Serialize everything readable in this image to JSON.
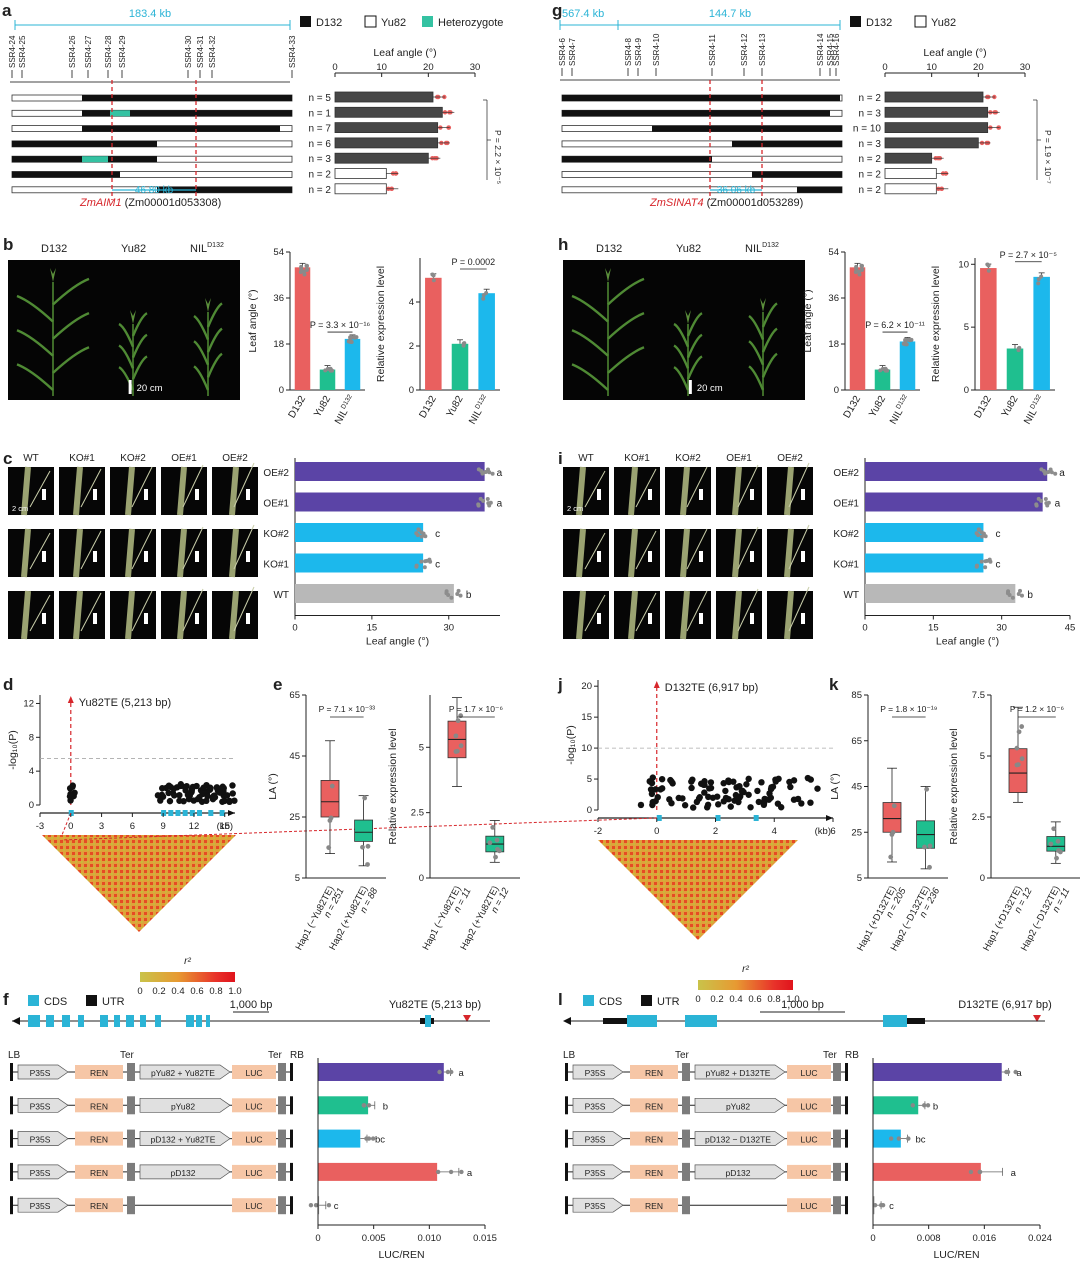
{
  "colors": {
    "d132": "#e9605f",
    "yu82": "#1fbf8f",
    "nil": "#1cb8ec",
    "purple": "#5b44a6",
    "gray": "#b8b8b8",
    "dark": "#474747",
    "het": "#34c2a2",
    "cyan": "#2bb4d6",
    "redline": "#d7262b",
    "teLabel": "#c3252b"
  },
  "panels": {
    "a": {
      "letter": "a",
      "kb_total": "183.4 kb",
      "legend": [
        "D132",
        "Yu82",
        "Heterozygote"
      ],
      "markers": [
        "SSR4-24",
        "SSR4-25",
        "SSR4-26",
        "SSR4-27",
        "SSR4-28",
        "SSR4-29",
        "SSR4-30",
        "SSR4-31",
        "SSR4-32",
        "SSR4-33"
      ],
      "interval_kb": "46.80 kb",
      "gene_name": "ZmAIM1",
      "gene_id": "(Zm00001d053308)",
      "axis_title": "Leaf angle (°)",
      "p_label": "P = 2.2 × 10⁻⁵"
    },
    "g": {
      "letter": "g",
      "kb_left": "567.4 kb",
      "kb_right": "144.7 kb",
      "legend": [
        "D132",
        "Yu82"
      ],
      "markers": [
        "SSR4-6",
        "SSR4-7",
        "SSR4-8",
        "SSR4-9",
        "SSR4-10",
        "SSR4-11",
        "SSR4-12",
        "SSR4-13",
        "SSR4-14",
        "SSR4-15",
        "SSR4-16"
      ],
      "interval_kb": "36.06 kb",
      "gene_name": "ZmSINAT4",
      "gene_id": "(Zm00001d053289)",
      "axis_title": "Leaf angle (°)",
      "p_label": "P = 1.9 × 10⁻⁷"
    },
    "b": {
      "letter": "b",
      "plants": [
        "D132",
        "Yu82",
        "NIL"
      ],
      "nil_sup": "D132",
      "scale": "20 cm",
      "p1": "P = 3.3 × 10⁻¹⁶",
      "p2": "P = 0.0002",
      "ylabel1": "Leaf angle (°)",
      "ylabel2": "Relative expression level"
    },
    "h": {
      "letter": "h",
      "plants": [
        "D132",
        "Yu82",
        "NIL"
      ],
      "nil_sup": "D132",
      "scale": "20 cm",
      "p1": "P = 6.2 × 10⁻¹¹",
      "p2": "P = 2.7 × 10⁻⁵",
      "ylabel1": "Leaf angle (°)",
      "ylabel2": "Relative expression level"
    },
    "c": {
      "letter": "c",
      "cols": [
        "WT",
        "KO#1",
        "KO#2",
        "OE#1",
        "OE#2"
      ],
      "scale": "2 cm",
      "xlabel": "Leaf angle (°)"
    },
    "i": {
      "letter": "i",
      "cols": [
        "WT",
        "KO#1",
        "KO#2",
        "OE#1",
        "OE#2"
      ],
      "scale": "2 cm",
      "xlabel": "Leaf angle (°)"
    },
    "d": {
      "letter": "d",
      "te": "Yu82TE (5,213 bp)",
      "ylabel": "-log₁₀(P)",
      "xunit": "(kb)",
      "r2": "r²"
    },
    "j": {
      "letter": "j",
      "te": "D132TE (6,917 bp)",
      "ylabel": "-log₁₀(P)",
      "xunit": "(kb)",
      "r2": "r²"
    },
    "e": {
      "letter": "e",
      "p1": "P = 7.1 × 10⁻³³",
      "p2": "P = 1.7 × 10⁻⁶",
      "ylabel1": "LA (°)",
      "ylabel2": "Relative expression level",
      "g1": [
        "Hap1 (−Yu82TE)",
        "n = 251"
      ],
      "g2": [
        "Hap2 (+Yu82TE)",
        "n = 88"
      ],
      "g3": [
        "Hap1 (−Yu82TE)",
        "n = 11"
      ],
      "g4": [
        "Hap2 (+Yu82TE)",
        "n = 12"
      ]
    },
    "k": {
      "letter": "k",
      "p1": "P = 1.8 × 10⁻¹⁹",
      "p2": "P = 1.2 × 10⁻⁶",
      "ylabel1": "LA (°)",
      "ylabel2": "Relative expression level",
      "g1": [
        "Hap1 (+D132TE)",
        "n = 205"
      ],
      "g2": [
        "Hap2 (−D132TE)",
        "n = 236"
      ],
      "g3": [
        "Hap1 (+D132TE)",
        "n = 12"
      ],
      "g4": [
        "Hap2 (−D132TE)",
        "n = 11"
      ]
    },
    "f": {
      "letter": "f",
      "legend": [
        "CDS",
        "UTR"
      ],
      "scale": "1,000 bp",
      "te": "Yu82TE (5,213 bp)",
      "xlabel": "LUC/REN",
      "labels": {
        "LB": "LB",
        "RB": "RB",
        "Ter": "Ter",
        "P35S": "P35S",
        "REN": "REN",
        "LUC": "LUC"
      },
      "constructs": [
        "pYu82 + Yu82TE",
        "pYu82",
        "pD132 + Yu82TE",
        "pD132",
        ""
      ]
    },
    "l": {
      "letter": "l",
      "legend": [
        "CDS",
        "UTR"
      ],
      "scale": "1,000 bp",
      "te": "D132TE (6,917 bp)",
      "xlabel": "LUC/REN",
      "labels": {
        "LB": "LB",
        "RB": "RB",
        "Ter": "Ter",
        "P35S": "P35S",
        "REN": "REN",
        "LUC": "LUC"
      },
      "constructs": [
        "pYu82 + D132TE",
        "pYu82",
        "pD132 − D132TE",
        "pD132",
        ""
      ]
    }
  },
  "chart_data": [
    {
      "id": "a_bars",
      "type": "bar",
      "title": "",
      "xlabel": "Leaf angle (°)",
      "orientation": "horizontal",
      "xlim": [
        0,
        30
      ],
      "ticks": [
        0,
        10,
        20,
        30
      ],
      "series": [
        {
          "values": [
            21,
            23,
            22,
            22,
            20,
            11,
            11
          ]
        }
      ],
      "n_labels": [
        "n = 5",
        "n = 1",
        "n = 7",
        "n = 6",
        "n = 3",
        "n = 2",
        "n = 2"
      ]
    },
    {
      "id": "g_bars",
      "type": "bar",
      "title": "",
      "xlabel": "Leaf angle (°)",
      "orientation": "horizontal",
      "xlim": [
        0,
        30
      ],
      "ticks": [
        0,
        10,
        20,
        30
      ],
      "series": [
        {
          "values": [
            21,
            22,
            22,
            20,
            10,
            11,
            11
          ]
        }
      ],
      "n_labels": [
        "n = 2",
        "n = 3",
        "n = 10",
        "n = 3",
        "n = 2",
        "n = 2",
        "n = 2"
      ]
    },
    {
      "id": "b_la",
      "type": "bar",
      "categories": [
        "D132",
        "Yu82",
        "NIL"
      ],
      "values": [
        48,
        8,
        20
      ],
      "ylabel": "Leaf angle (°)",
      "ylim": [
        0,
        54
      ],
      "ticks": [
        0,
        18,
        36,
        54
      ]
    },
    {
      "id": "b_expr",
      "type": "bar",
      "categories": [
        "D132",
        "Yu82",
        "NIL"
      ],
      "values": [
        5.1,
        2.1,
        4.4
      ],
      "ylabel": "Relative expression level",
      "ylim": [
        0,
        6
      ],
      "ticks": [
        0,
        2,
        4
      ]
    },
    {
      "id": "h_la",
      "type": "bar",
      "categories": [
        "D132",
        "Yu82",
        "NIL"
      ],
      "values": [
        48,
        8,
        19
      ],
      "ylabel": "Leaf angle (°)",
      "ylim": [
        0,
        54
      ],
      "ticks": [
        0,
        18,
        36,
        54
      ]
    },
    {
      "id": "h_expr",
      "type": "bar",
      "categories": [
        "D132",
        "Yu82",
        "NIL"
      ],
      "values": [
        9.7,
        3.3,
        9.0
      ],
      "ylabel": "Relative expression level",
      "ylim": [
        0,
        10.5
      ],
      "ticks": [
        0,
        5,
        10
      ]
    },
    {
      "id": "c_bars",
      "type": "bar",
      "orientation": "horizontal",
      "categories": [
        "OE#2",
        "OE#1",
        "KO#2",
        "KO#1",
        "WT"
      ],
      "values": [
        37,
        37,
        25,
        25,
        31
      ],
      "letters": [
        "a",
        "a",
        "c",
        "c",
        "b"
      ],
      "xlabel": "Leaf angle (°)",
      "xlim": [
        0,
        40
      ],
      "ticks": [
        0,
        15,
        30
      ]
    },
    {
      "id": "i_bars",
      "type": "bar",
      "orientation": "horizontal",
      "categories": [
        "OE#2",
        "OE#1",
        "KO#2",
        "KO#1",
        "WT"
      ],
      "values": [
        40,
        39,
        26,
        26,
        33
      ],
      "letters": [
        "a",
        "a",
        "c",
        "c",
        "b"
      ],
      "xlabel": "Leaf angle (°)",
      "xlim": [
        0,
        45
      ],
      "ticks": [
        0,
        15,
        30,
        45
      ]
    },
    {
      "id": "d_scatter",
      "type": "scatter",
      "ylabel": "-log₁₀(P)",
      "ylim": [
        0,
        13
      ],
      "yticks": [
        0,
        4,
        8,
        12
      ],
      "xlim": [
        -3,
        16
      ],
      "xticks": [
        -3,
        0,
        3,
        6,
        9,
        12,
        15
      ],
      "xunit": "(kb)"
    },
    {
      "id": "j_scatter",
      "type": "scatter",
      "ylabel": "-log₁₀(P)",
      "ylim": [
        0,
        21
      ],
      "yticks": [
        0,
        5,
        10,
        15,
        20
      ],
      "xlim": [
        -2,
        6
      ],
      "xticks": [
        -2,
        0,
        2,
        4,
        6
      ],
      "xunit": "(kb)"
    },
    {
      "id": "d_heat",
      "type": "heatmap",
      "legend": "r²",
      "ticks": [
        "0",
        "0.2",
        "0.4",
        "0.6",
        "0.8",
        "1.0"
      ]
    },
    {
      "id": "j_heat",
      "type": "heatmap",
      "legend": "r²",
      "ticks": [
        "0",
        "0.2",
        "0.4",
        "0.6",
        "0.8",
        "1.0"
      ]
    },
    {
      "id": "e_la",
      "type": "box",
      "ylabel": "LA (°)",
      "ylim": [
        5,
        65
      ],
      "ticks": [
        5,
        25,
        45,
        65
      ],
      "boxes": [
        {
          "q1": 25,
          "med": 30,
          "q3": 37,
          "lo": 13,
          "hi": 50
        },
        {
          "q1": 17,
          "med": 20,
          "q3": 24,
          "lo": 9,
          "hi": 32
        }
      ]
    },
    {
      "id": "e_expr",
      "type": "box",
      "ylabel": "Relative expression level",
      "ylim": [
        0,
        7
      ],
      "ticks": [
        0,
        2.5,
        5.0
      ],
      "boxes": [
        {
          "q1": 4.6,
          "med": 5.3,
          "q3": 6.0,
          "lo": 3.5,
          "hi": 6.9
        },
        {
          "q1": 1.0,
          "med": 1.3,
          "q3": 1.6,
          "lo": 0.6,
          "hi": 2.2
        }
      ]
    },
    {
      "id": "k_la",
      "type": "box",
      "ylabel": "LA (°)",
      "ylim": [
        5,
        85
      ],
      "ticks": [
        5,
        25,
        45,
        65,
        85
      ],
      "boxes": [
        {
          "q1": 25,
          "med": 31,
          "q3": 38,
          "lo": 12,
          "hi": 53
        },
        {
          "q1": 18,
          "med": 24,
          "q3": 30,
          "lo": 9,
          "hi": 45
        }
      ]
    },
    {
      "id": "k_expr",
      "type": "box",
      "ylabel": "Relative expression level",
      "ylim": [
        0,
        7.5
      ],
      "ticks": [
        0,
        2.5,
        5.0,
        7.5
      ],
      "boxes": [
        {
          "q1": 3.5,
          "med": 4.3,
          "q3": 5.3,
          "lo": 3.1,
          "hi": 7.0
        },
        {
          "q1": 1.1,
          "med": 1.3,
          "q3": 1.7,
          "lo": 0.6,
          "hi": 2.3
        }
      ]
    },
    {
      "id": "f_bars",
      "type": "bar",
      "orientation": "horizontal",
      "categories": [
        "pYu82 + Yu82TE",
        "pYu82",
        "pD132 + Yu82TE",
        "pD132",
        "empty"
      ],
      "values": [
        0.0113,
        0.0045,
        0.0038,
        0.0107,
        0.0001
      ],
      "letters": [
        "a",
        "b",
        "bc",
        "a",
        "c"
      ],
      "xlabel": "LUC/REN",
      "xlim": [
        0,
        0.015
      ],
      "ticks": [
        0,
        0.005,
        0.01,
        0.015
      ],
      "tick_labels": [
        "0",
        "0.005",
        "0.010",
        "0.015"
      ]
    },
    {
      "id": "l_bars",
      "type": "bar",
      "orientation": "horizontal",
      "categories": [
        "pYu82 + D132TE",
        "pYu82",
        "pD132 − D132TE",
        "pD132",
        "empty"
      ],
      "values": [
        0.0185,
        0.0065,
        0.004,
        0.0155,
        0.0002
      ],
      "letters": [
        "a",
        "b",
        "bc",
        "a",
        "c"
      ],
      "xlabel": "LUC/REN",
      "xlim": [
        0,
        0.024
      ],
      "ticks": [
        0,
        0.008,
        0.016,
        0.024
      ],
      "tick_labels": [
        "0",
        "0.008",
        "0.016",
        "0.024"
      ]
    }
  ]
}
